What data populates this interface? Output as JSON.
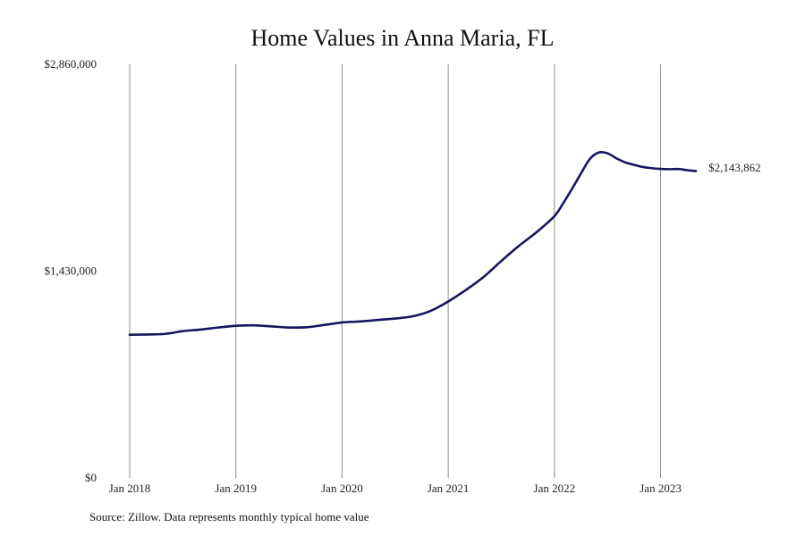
{
  "chart_data": {
    "type": "line",
    "title": "Home Values in Anna Maria, FL",
    "source": "Source: Zillow. Data represents monthly typical home value",
    "ylim": [
      0,
      2860000
    ],
    "y_ticks": [
      {
        "value": 0,
        "label": "$0"
      },
      {
        "value": 1430000,
        "label": "$1,430,000"
      },
      {
        "value": 2860000,
        "label": "$2,860,000"
      }
    ],
    "xlim": [
      "2018-01",
      "2023-06"
    ],
    "x_ticks": [
      {
        "value": "2018-01",
        "label": "Jan 2018"
      },
      {
        "value": "2019-01",
        "label": "Jan 2019"
      },
      {
        "value": "2020-01",
        "label": "Jan 2020"
      },
      {
        "value": "2021-01",
        "label": "Jan 2021"
      },
      {
        "value": "2022-01",
        "label": "Jan 2022"
      },
      {
        "value": "2023-01",
        "label": "Jan 2023"
      }
    ],
    "grid": {
      "vertical": true,
      "horizontal": false
    },
    "line_color": "#14165e",
    "grid_color": "#8c8c8c",
    "end_label": "$2,143,862",
    "series": [
      {
        "x": [
          "2018-01",
          "2018-03",
          "2018-05",
          "2018-07",
          "2018-09",
          "2018-11",
          "2019-01",
          "2019-03",
          "2019-05",
          "2019-07",
          "2019-09",
          "2019-11",
          "2020-01",
          "2020-03",
          "2020-05",
          "2020-07",
          "2020-09",
          "2020-11",
          "2021-01",
          "2021-03",
          "2021-05",
          "2021-07",
          "2021-09",
          "2021-11",
          "2022-01",
          "2022-02",
          "2022-03",
          "2022-04",
          "2022-05",
          "2022-06",
          "2022-07",
          "2022-08",
          "2022-09",
          "2022-10",
          "2022-11",
          "2022-12",
          "2023-01",
          "2023-02",
          "2023-03",
          "2023-04",
          "2023-05"
        ],
        "y": [
          990000,
          992000,
          996000,
          1015000,
          1026000,
          1040000,
          1052000,
          1055000,
          1048000,
          1040000,
          1042000,
          1058000,
          1075000,
          1082000,
          1092000,
          1102000,
          1118000,
          1155000,
          1220000,
          1300000,
          1390000,
          1500000,
          1605000,
          1700000,
          1810000,
          1900000,
          2000000,
          2105000,
          2205000,
          2250000,
          2245000,
          2210000,
          2182000,
          2165000,
          2150000,
          2142000,
          2137000,
          2135000,
          2136000,
          2128000,
          2122000
        ]
      }
    ]
  }
}
